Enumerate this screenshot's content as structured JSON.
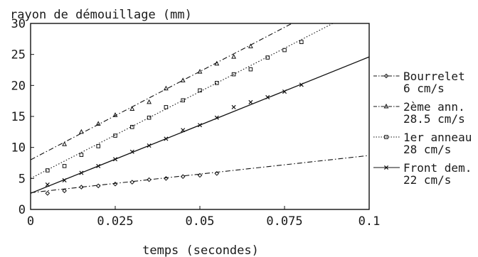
{
  "chart_data": {
    "type": "scatter",
    "ylabel": "rayon de démouillage (mm)",
    "xlabel": "temps (secondes)",
    "xlim": [
      0,
      0.1
    ],
    "ylim": [
      0,
      30
    ],
    "x_ticks": [
      "0",
      "0.025",
      "0.05",
      "0.075",
      "0.1"
    ],
    "y_ticks": [
      "0",
      "5",
      "10",
      "15",
      "20",
      "25",
      "30"
    ],
    "grid": false,
    "legend_position": "right",
    "series": [
      {
        "id": "bourrelet",
        "marker": "diamond",
        "line_style": "dash-dot",
        "legend_line1": "Bourrelet",
        "legend_line2": "6 cm/s",
        "fit": {
          "intercept": 2.7,
          "slope": 60
        },
        "points": [
          [
            0.005,
            2.6
          ],
          [
            0.01,
            3.0
          ],
          [
            0.015,
            3.6
          ],
          [
            0.02,
            3.8
          ],
          [
            0.025,
            4.1
          ],
          [
            0.03,
            4.4
          ],
          [
            0.035,
            4.8
          ],
          [
            0.04,
            5.0
          ],
          [
            0.045,
            5.3
          ],
          [
            0.05,
            5.5
          ],
          [
            0.055,
            5.8
          ]
        ]
      },
      {
        "id": "2eme-anneau",
        "marker": "triangle",
        "line_style": "dash-dot",
        "legend_line1": "2ème ann.",
        "legend_line2": "28.5 cm/s",
        "fit": {
          "intercept": 8.0,
          "slope": 285
        },
        "points": [
          [
            0.01,
            10.5
          ],
          [
            0.015,
            12.5
          ],
          [
            0.02,
            13.8
          ],
          [
            0.025,
            15.2
          ],
          [
            0.03,
            16.2
          ],
          [
            0.035,
            17.3
          ],
          [
            0.04,
            19.5
          ],
          [
            0.045,
            20.8
          ],
          [
            0.05,
            22.2
          ],
          [
            0.055,
            23.5
          ],
          [
            0.06,
            24.6
          ],
          [
            0.065,
            26.3
          ]
        ]
      },
      {
        "id": "1er-anneau",
        "marker": "square",
        "line_style": "dotted",
        "legend_line1": "1er anneau",
        "legend_line2": "28 cm/s",
        "fit": {
          "intercept": 5.0,
          "slope": 280
        },
        "points": [
          [
            0.005,
            6.3
          ],
          [
            0.01,
            7.0
          ],
          [
            0.015,
            8.8
          ],
          [
            0.02,
            10.2
          ],
          [
            0.025,
            11.9
          ],
          [
            0.03,
            13.3
          ],
          [
            0.035,
            14.8
          ],
          [
            0.04,
            16.5
          ],
          [
            0.045,
            17.6
          ],
          [
            0.05,
            19.2
          ],
          [
            0.055,
            20.4
          ],
          [
            0.06,
            21.8
          ],
          [
            0.065,
            22.6
          ],
          [
            0.07,
            24.5
          ],
          [
            0.075,
            25.7
          ],
          [
            0.08,
            27.0
          ]
        ]
      },
      {
        "id": "front-dem",
        "marker": "cross",
        "line_style": "solid",
        "legend_line1": "Front dem.",
        "legend_line2": "22 cm/s",
        "fit": {
          "intercept": 2.6,
          "slope": 220
        },
        "points": [
          [
            0.005,
            4.0
          ],
          [
            0.01,
            4.7
          ],
          [
            0.015,
            5.9
          ],
          [
            0.02,
            7.0
          ],
          [
            0.025,
            8.1
          ],
          [
            0.03,
            9.3
          ],
          [
            0.035,
            10.3
          ],
          [
            0.04,
            11.4
          ],
          [
            0.045,
            12.8
          ],
          [
            0.05,
            13.6
          ],
          [
            0.055,
            14.8
          ],
          [
            0.06,
            16.5
          ],
          [
            0.065,
            17.3
          ],
          [
            0.07,
            18.1
          ],
          [
            0.075,
            19.0
          ],
          [
            0.08,
            20.1
          ]
        ]
      }
    ]
  }
}
